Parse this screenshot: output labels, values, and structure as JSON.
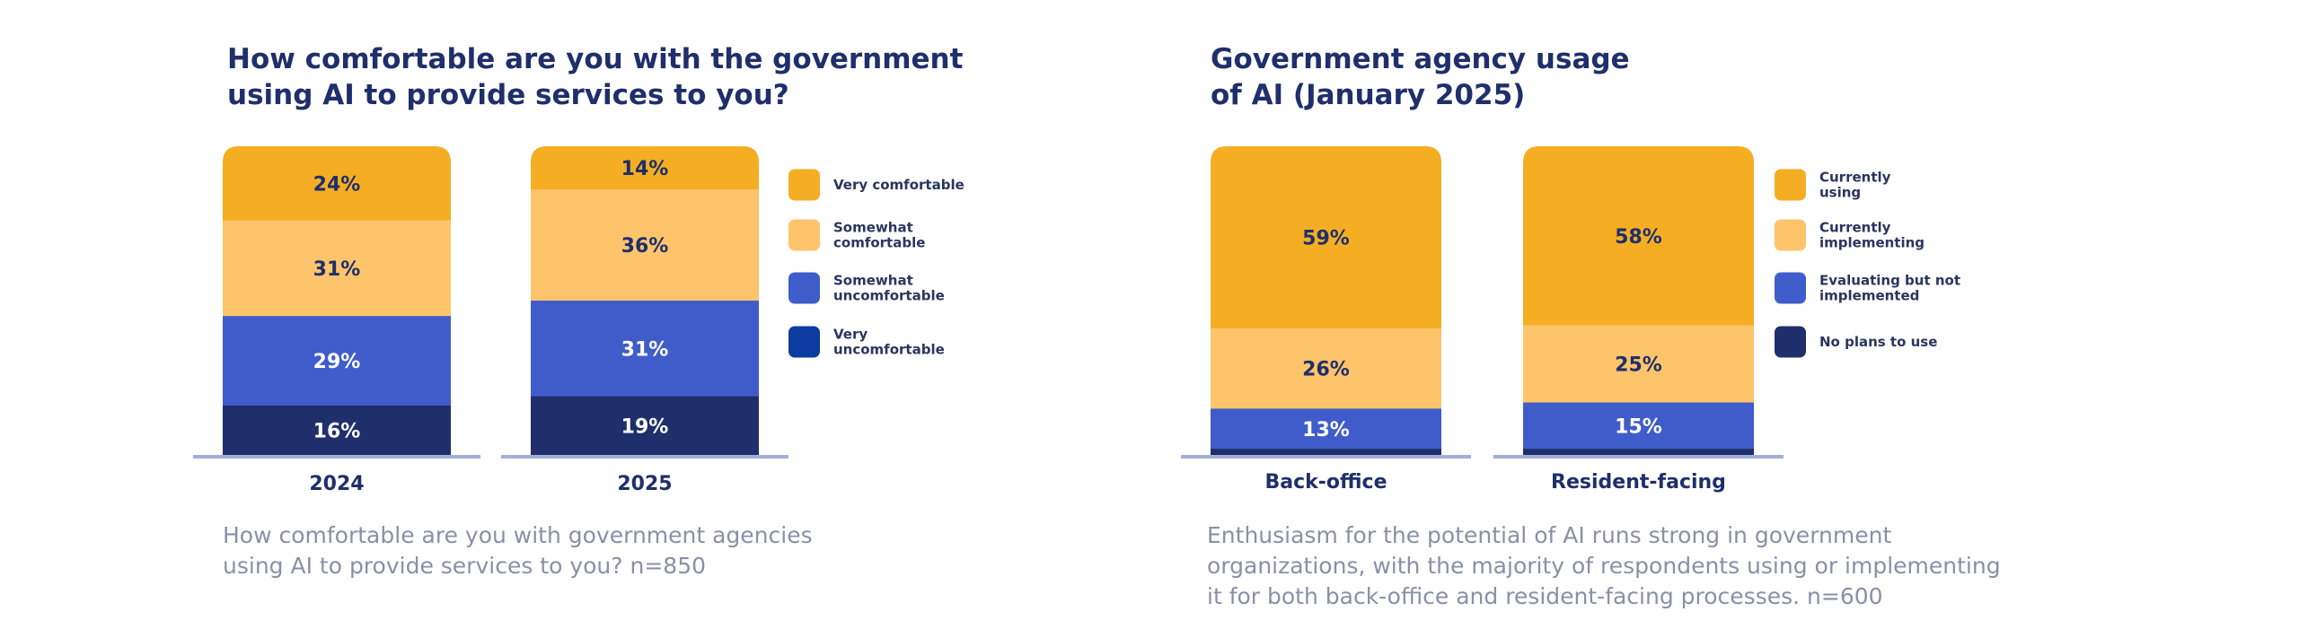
{
  "chart_data": [
    {
      "type": "bar",
      "stacked": true,
      "title": "How comfortable are you with the government\nusing AI to provide services to you?",
      "caption": "How comfortable are you with government agencies\nusing AI to provide services to you? n=850",
      "categories": [
        "2024",
        "2025"
      ],
      "series": [
        {
          "name": "Very comfortable",
          "values": [
            24,
            14
          ],
          "labels": [
            "24%",
            "14%"
          ],
          "color": "#f5ae24",
          "text_color": "#1f2f6b"
        },
        {
          "name": "Somewhat\ncomfortable",
          "values": [
            31,
            36
          ],
          "labels": [
            "31%",
            "36%"
          ],
          "color": "#fdc46c",
          "text_color": "#1f2f6b"
        },
        {
          "name": "Somewhat\nuncomfortable",
          "values": [
            29,
            31
          ],
          "labels": [
            "29%",
            "31%"
          ],
          "color": "#405ccb",
          "text_color": "#ffffff"
        },
        {
          "name": "Very\nuncomfortable",
          "values": [
            16,
            19
          ],
          "labels": [
            "16%",
            "19%"
          ],
          "color": "#1f2f6b",
          "text_color": "#ffffff"
        }
      ],
      "legend_colors": [
        "#f5ae24",
        "#fdc46c",
        "#405ccb",
        "#0b3ca0"
      ],
      "ylim": [
        0,
        100
      ],
      "legend_position": "right",
      "grid": false
    },
    {
      "type": "bar",
      "stacked": true,
      "title": "Government agency usage\nof AI (January 2025)",
      "caption": "Enthusiasm for the potential of AI runs strong in government\norganizations, with the majority of respondents using or implementing\nit for both back-office and resident-facing processes. n=600",
      "categories": [
        "Back-office",
        "Resident-facing"
      ],
      "series": [
        {
          "name": "Currently\nusing",
          "values": [
            59,
            58
          ],
          "labels": [
            "59%",
            "58%"
          ],
          "color": "#f5ae24",
          "text_color": "#1f2f6b"
        },
        {
          "name": "Currently\nimplementing",
          "values": [
            26,
            25
          ],
          "labels": [
            "26%",
            "25%"
          ],
          "color": "#fdc46c",
          "text_color": "#1f2f6b"
        },
        {
          "name": "Evaluating but not\nimplemented",
          "values": [
            13,
            15
          ],
          "labels": [
            "13%",
            "15%"
          ],
          "color": "#405ccb",
          "text_color": "#ffffff"
        },
        {
          "name": "No plans to use",
          "values": [
            2,
            2
          ],
          "labels": [
            "",
            ""
          ],
          "color": "#1f2f6b",
          "text_color": "#ffffff"
        }
      ],
      "legend_colors": [
        "#f5ae24",
        "#fdc46c",
        "#405ccb",
        "#1f2f6b"
      ],
      "ylim": [
        0,
        100
      ],
      "legend_position": "right",
      "grid": false
    }
  ]
}
